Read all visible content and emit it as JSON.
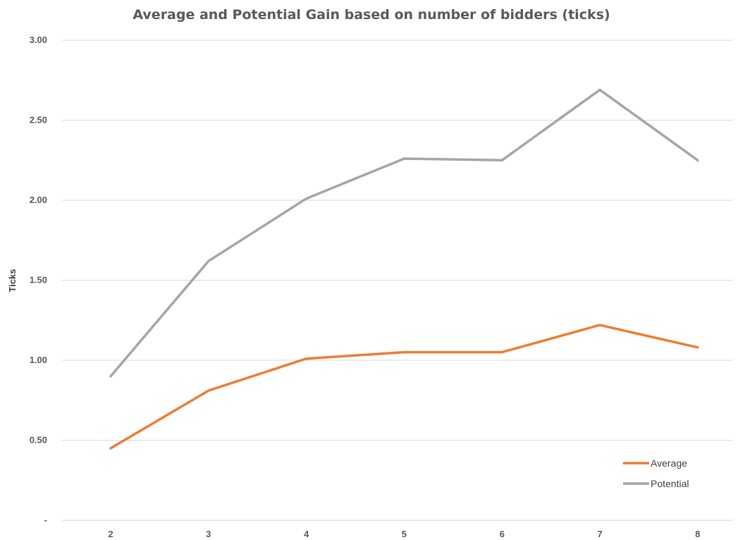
{
  "chart_data": {
    "type": "line",
    "title": "Average and Potential Gain based on number of bidders (ticks)",
    "xlabel": "",
    "ylabel": "Ticks",
    "categories": [
      "2",
      "3",
      "4",
      "5",
      "6",
      "7",
      "8"
    ],
    "y_ticks": [
      "-",
      "0.50",
      "1.00",
      "1.50",
      "2.00",
      "2.50",
      "3.00"
    ],
    "ylim": [
      0,
      3
    ],
    "grid": true,
    "legend_position": "bottom-right",
    "series": [
      {
        "name": "Average",
        "color": "#ed7d31",
        "values": [
          0.45,
          0.81,
          1.01,
          1.05,
          1.05,
          1.22,
          1.08
        ]
      },
      {
        "name": "Potential",
        "color": "#a5a5a5",
        "values": [
          0.9,
          1.62,
          2.01,
          2.26,
          2.25,
          2.69,
          2.25
        ]
      }
    ]
  }
}
